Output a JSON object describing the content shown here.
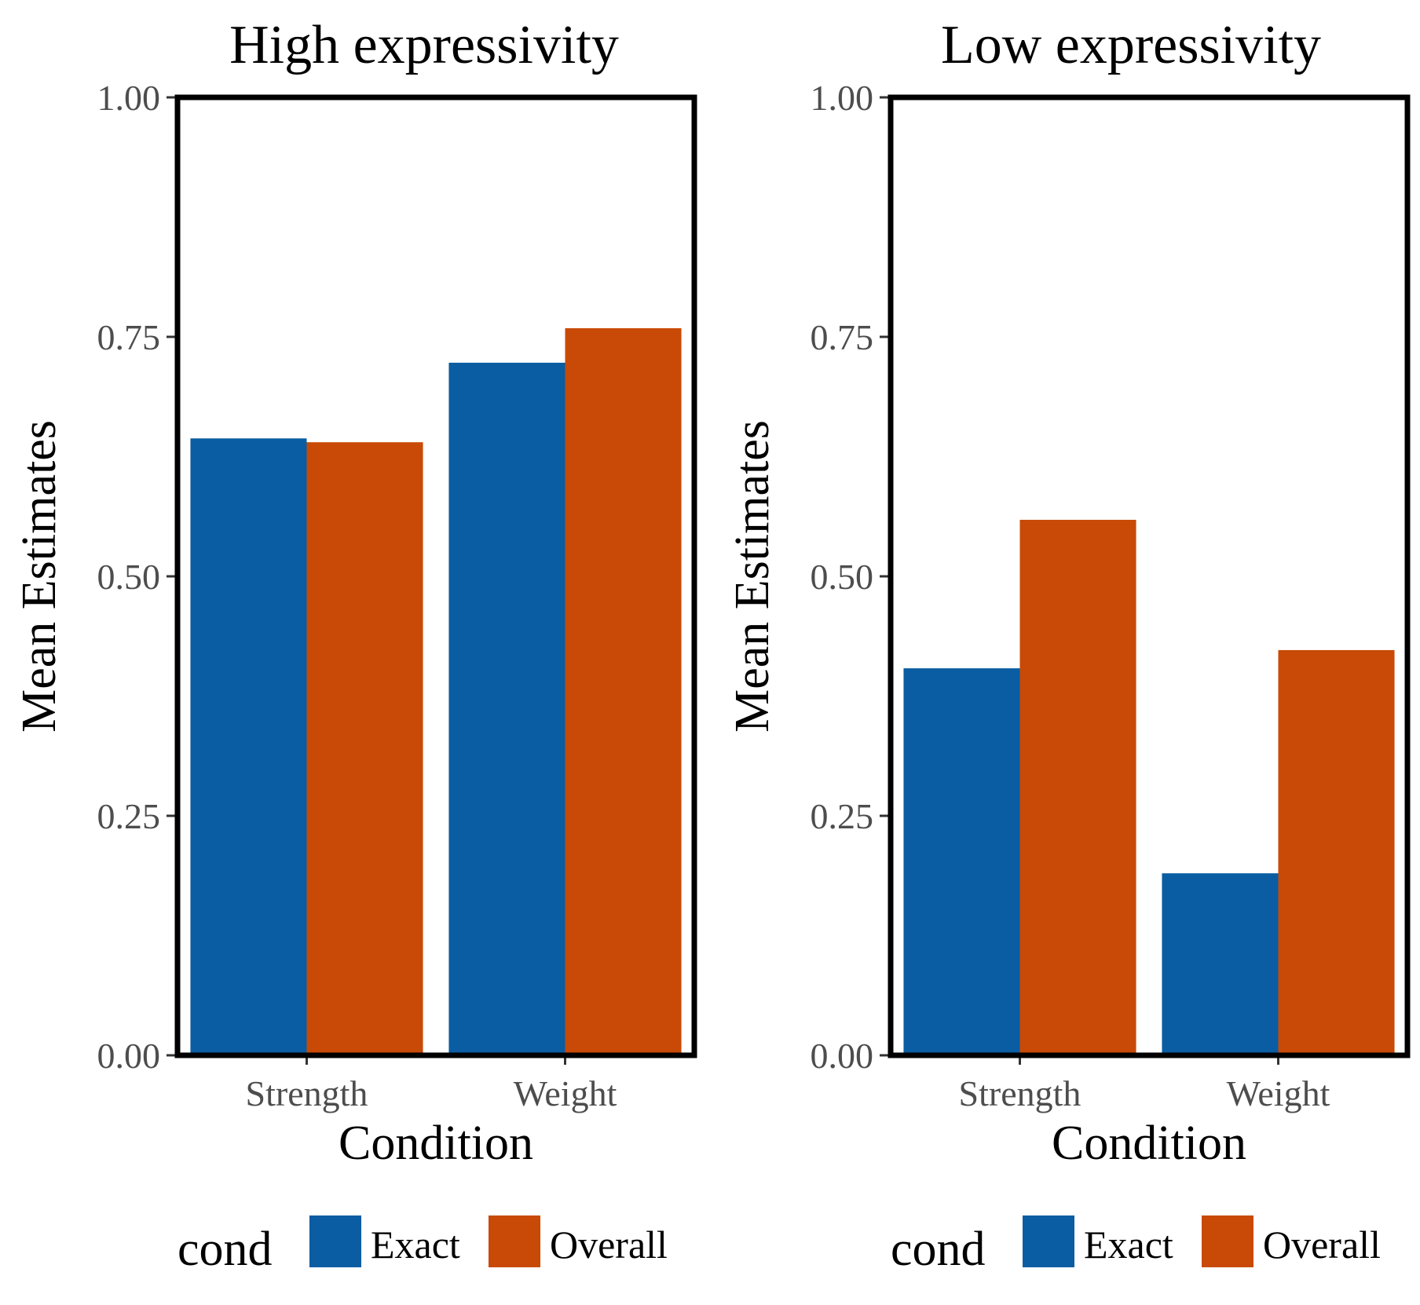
{
  "chart_data": [
    {
      "type": "bar",
      "title": "High expressivity",
      "xlabel": "Condition",
      "ylabel": "Mean Estimates",
      "ylim": [
        0,
        1
      ],
      "yticks": [
        "0.00",
        "0.25",
        "0.50",
        "0.75",
        "1.00"
      ],
      "categories": [
        "Strength",
        "Weight"
      ],
      "series": [
        {
          "name": "Exact",
          "color": "#0a5da2",
          "values": [
            0.644,
            0.723
          ]
        },
        {
          "name": "Overall",
          "color": "#c84a06",
          "values": [
            0.64,
            0.759
          ]
        }
      ],
      "legend": {
        "title": "cond",
        "placement": "bottom"
      },
      "grid": false
    },
    {
      "type": "bar",
      "title": "Low expressivity",
      "xlabel": "Condition",
      "ylabel": "Mean Estimates",
      "ylim": [
        0,
        1
      ],
      "yticks": [
        "0.00",
        "0.25",
        "0.50",
        "0.75",
        "1.00"
      ],
      "categories": [
        "Strength",
        "Weight"
      ],
      "series": [
        {
          "name": "Exact",
          "color": "#0a5da2",
          "values": [
            0.404,
            0.19
          ]
        },
        {
          "name": "Overall",
          "color": "#c84a06",
          "values": [
            0.559,
            0.423
          ]
        }
      ],
      "legend": {
        "title": "cond",
        "placement": "bottom"
      },
      "grid": false
    }
  ]
}
